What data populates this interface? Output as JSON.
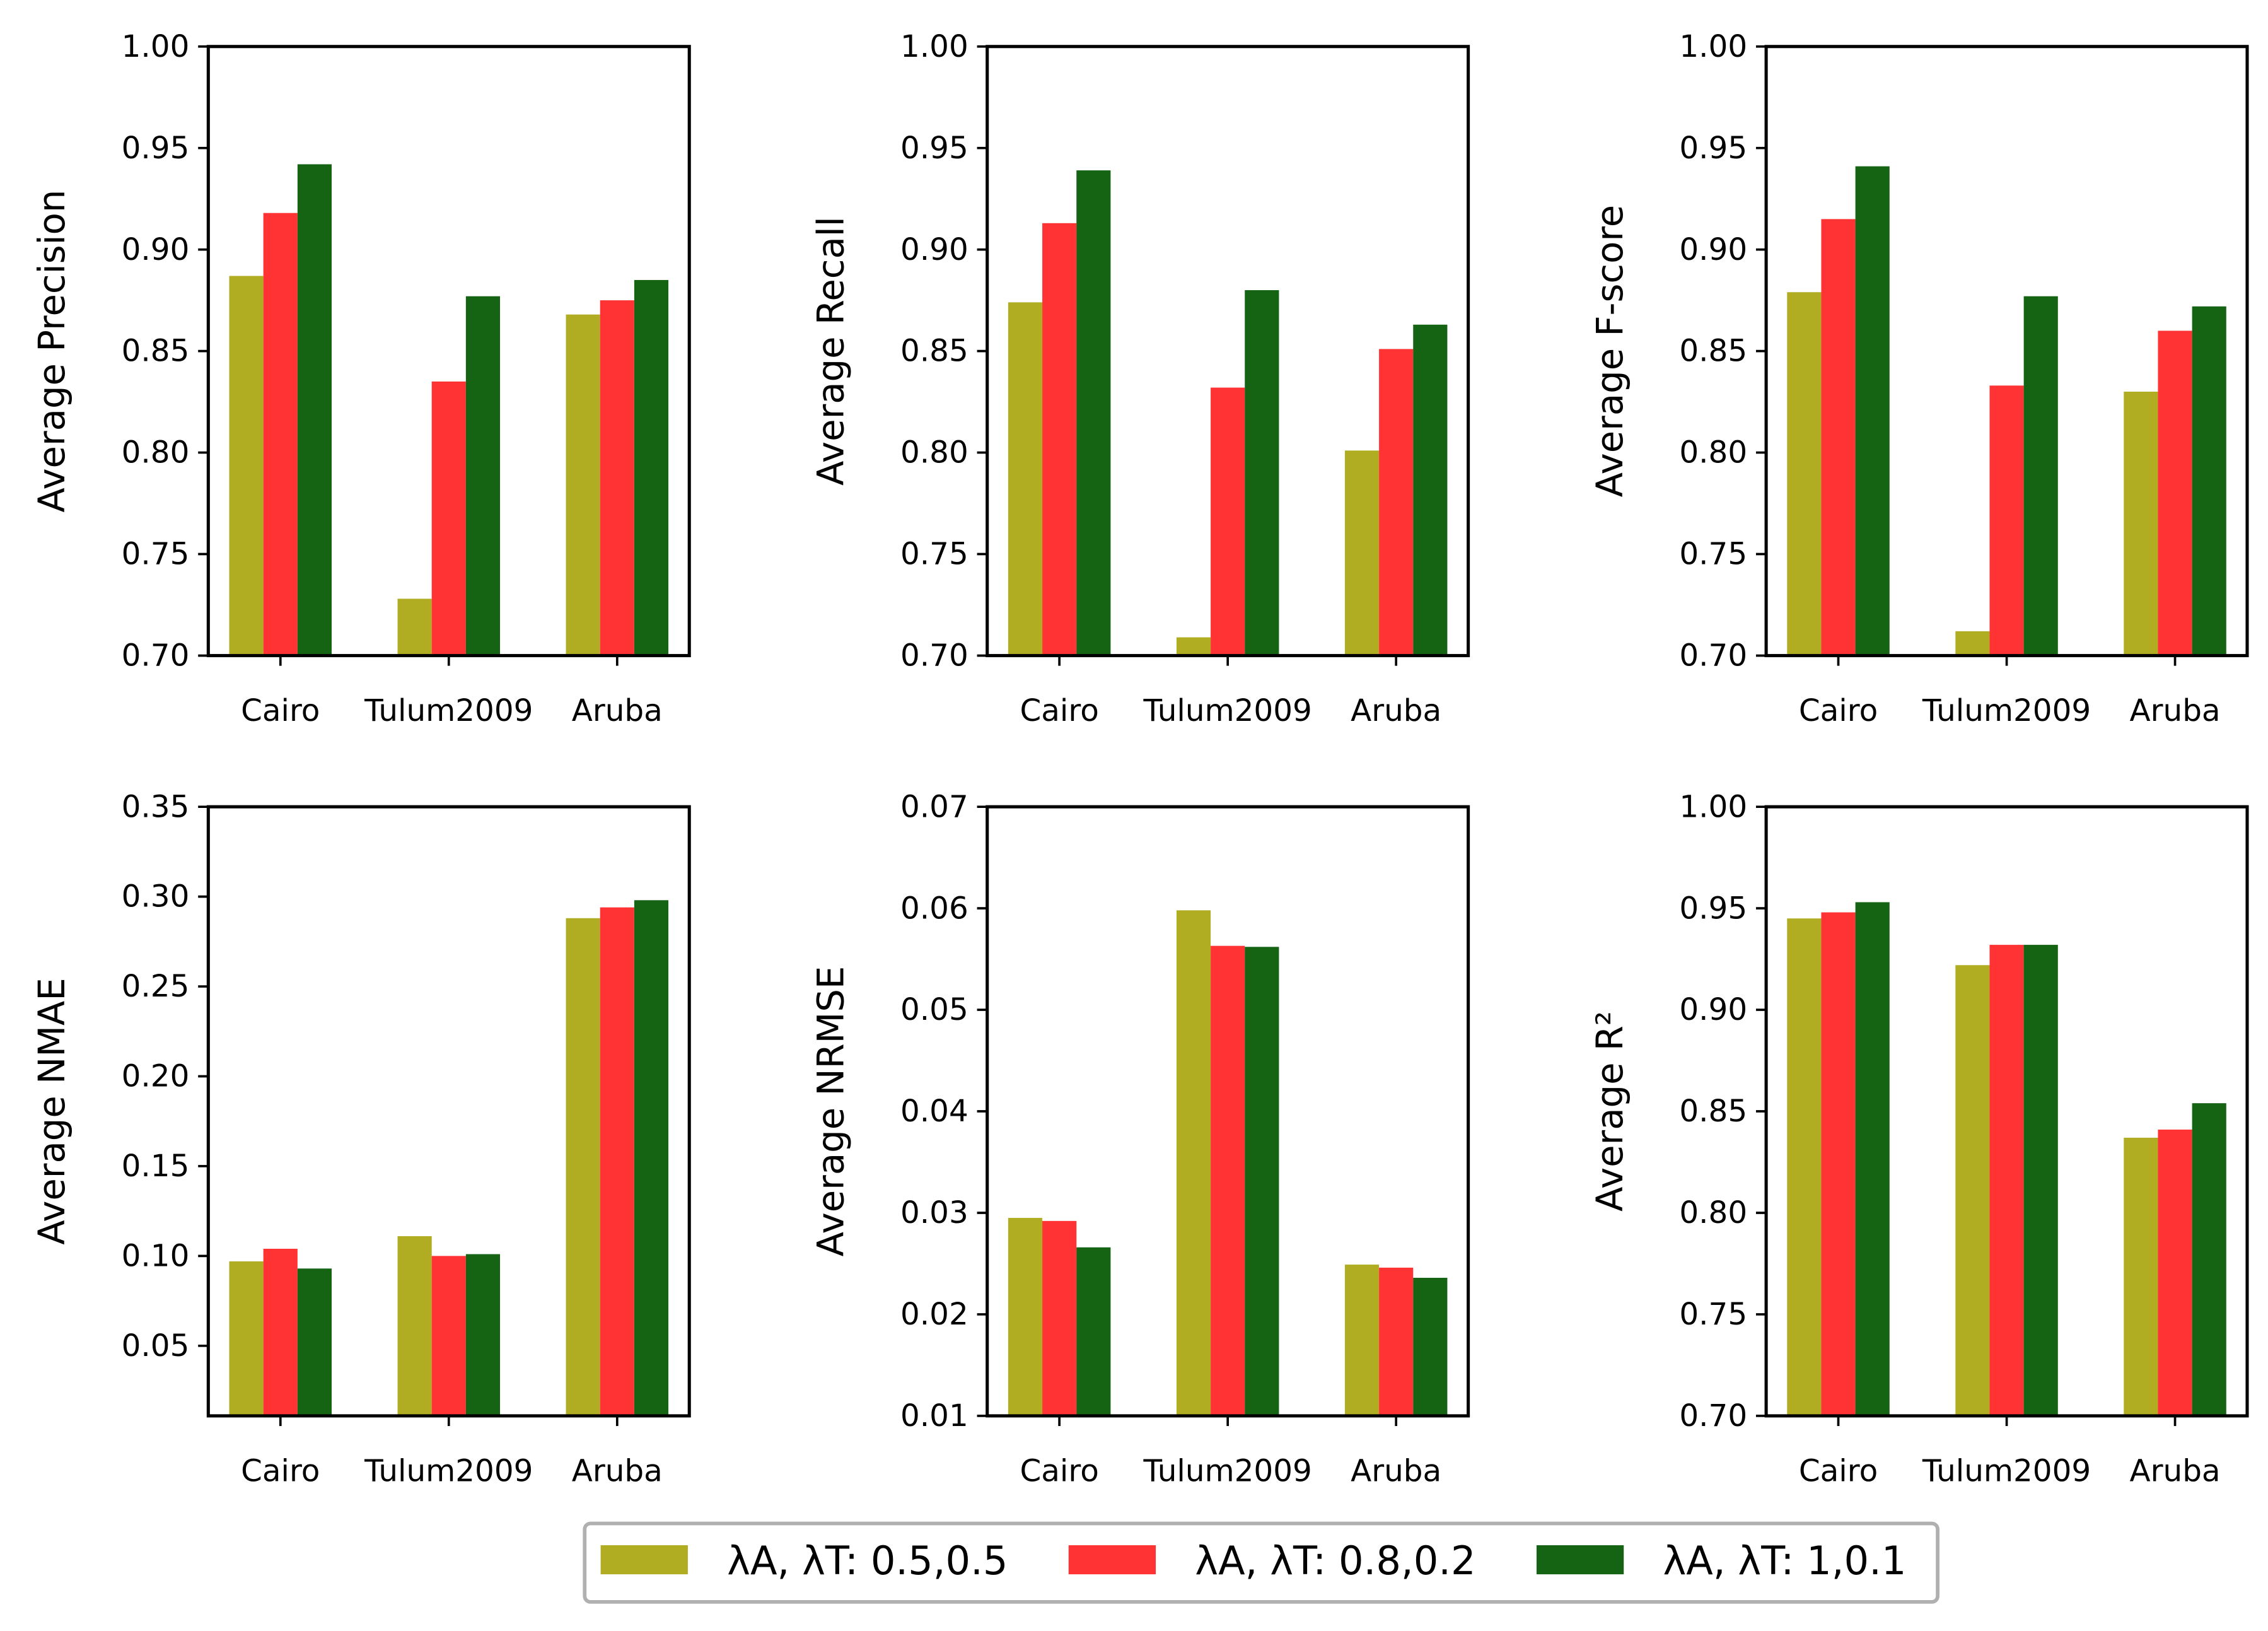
{
  "chart_data": [
    {
      "type": "bar",
      "ylabel": "Average Precision",
      "categories": [
        "Cairo",
        "Tulum2009",
        "Aruba"
      ],
      "ylim": [
        0.7,
        1.0
      ],
      "yticks": [
        "0.70",
        "0.75",
        "0.80",
        "0.85",
        "0.90",
        "0.95",
        "1.00"
      ],
      "series": [
        {
          "name": "λA, λT: 0.5,0.5",
          "values": [
            0.887,
            0.728,
            0.868
          ]
        },
        {
          "name": "λA, λT: 0.8,0.2",
          "values": [
            0.918,
            0.835,
            0.875
          ]
        },
        {
          "name": "λA, λT: 1,0.1",
          "values": [
            0.942,
            0.877,
            0.885
          ]
        }
      ]
    },
    {
      "type": "bar",
      "ylabel": "Average Recall",
      "categories": [
        "Cairo",
        "Tulum2009",
        "Aruba"
      ],
      "ylim": [
        0.7,
        1.0
      ],
      "yticks": [
        "0.70",
        "0.75",
        "0.80",
        "0.85",
        "0.90",
        "0.95",
        "1.00"
      ],
      "series": [
        {
          "name": "λA, λT: 0.5,0.5",
          "values": [
            0.874,
            0.709,
            0.801
          ]
        },
        {
          "name": "λA, λT: 0.8,0.2",
          "values": [
            0.913,
            0.832,
            0.851
          ]
        },
        {
          "name": "λA, λT: 1,0.1",
          "values": [
            0.939,
            0.88,
            0.863
          ]
        }
      ]
    },
    {
      "type": "bar",
      "ylabel": "Average F-score",
      "categories": [
        "Cairo",
        "Tulum2009",
        "Aruba"
      ],
      "ylim": [
        0.7,
        1.0
      ],
      "yticks": [
        "0.70",
        "0.75",
        "0.80",
        "0.85",
        "0.90",
        "0.95",
        "1.00"
      ],
      "series": [
        {
          "name": "λA, λT: 0.5,0.5",
          "values": [
            0.879,
            0.712,
            0.83
          ]
        },
        {
          "name": "λA, λT: 0.8,0.2",
          "values": [
            0.915,
            0.833,
            0.86
          ]
        },
        {
          "name": "λA, λT: 1,0.1",
          "values": [
            0.941,
            0.877,
            0.872
          ]
        }
      ]
    },
    {
      "type": "bar",
      "ylabel": "Average NMAE",
      "categories": [
        "Cairo",
        "Tulum2009",
        "Aruba"
      ],
      "ylim": [
        0.011,
        0.35
      ],
      "yticks": [
        "0.05",
        "0.10",
        "0.15",
        "0.20",
        "0.25",
        "0.30",
        "0.35"
      ],
      "series": [
        {
          "name": "λA, λT: 0.5,0.5",
          "values": [
            0.097,
            0.111,
            0.288
          ]
        },
        {
          "name": "λA, λT: 0.8,0.2",
          "values": [
            0.104,
            0.1,
            0.294
          ]
        },
        {
          "name": "λA, λT: 1,0.1",
          "values": [
            0.093,
            0.101,
            0.298
          ]
        }
      ]
    },
    {
      "type": "bar",
      "ylabel": "Average NRMSE",
      "categories": [
        "Cairo",
        "Tulum2009",
        "Aruba"
      ],
      "ylim": [
        0.01,
        0.07
      ],
      "yticks": [
        "0.01",
        "0.02",
        "0.03",
        "0.04",
        "0.05",
        "0.06",
        "0.07"
      ],
      "series": [
        {
          "name": "λA, λT: 0.5,0.5",
          "values": [
            0.0295,
            0.0598,
            0.0249
          ]
        },
        {
          "name": "λA, λT: 0.8,0.2",
          "values": [
            0.0292,
            0.0563,
            0.0246
          ]
        },
        {
          "name": "λA, λT: 1,0.1",
          "values": [
            0.0266,
            0.0562,
            0.0236
          ]
        }
      ]
    },
    {
      "type": "bar",
      "ylabel": "Average R²",
      "categories": [
        "Cairo",
        "Tulum2009",
        "Aruba"
      ],
      "ylim": [
        0.7,
        1.0
      ],
      "yticks": [
        "0.70",
        "0.75",
        "0.80",
        "0.85",
        "0.90",
        "0.95",
        "1.00"
      ],
      "series": [
        {
          "name": "λA, λT: 0.5,0.5",
          "values": [
            0.945,
            0.922,
            0.837
          ]
        },
        {
          "name": "λA, λT: 0.8,0.2",
          "values": [
            0.948,
            0.932,
            0.841
          ]
        },
        {
          "name": "λA, λT: 1,0.1",
          "values": [
            0.953,
            0.932,
            0.854
          ]
        }
      ]
    }
  ],
  "legend": {
    "placement": "bottom-center",
    "items": [
      {
        "label": "λA, λT: 0.5,0.5",
        "color": "#b0ad22"
      },
      {
        "label": "λA, λT: 0.8,0.2",
        "color": "#ff3333"
      },
      {
        "label": "λA, λT: 1,0.1",
        "color": "#146414"
      }
    ]
  }
}
